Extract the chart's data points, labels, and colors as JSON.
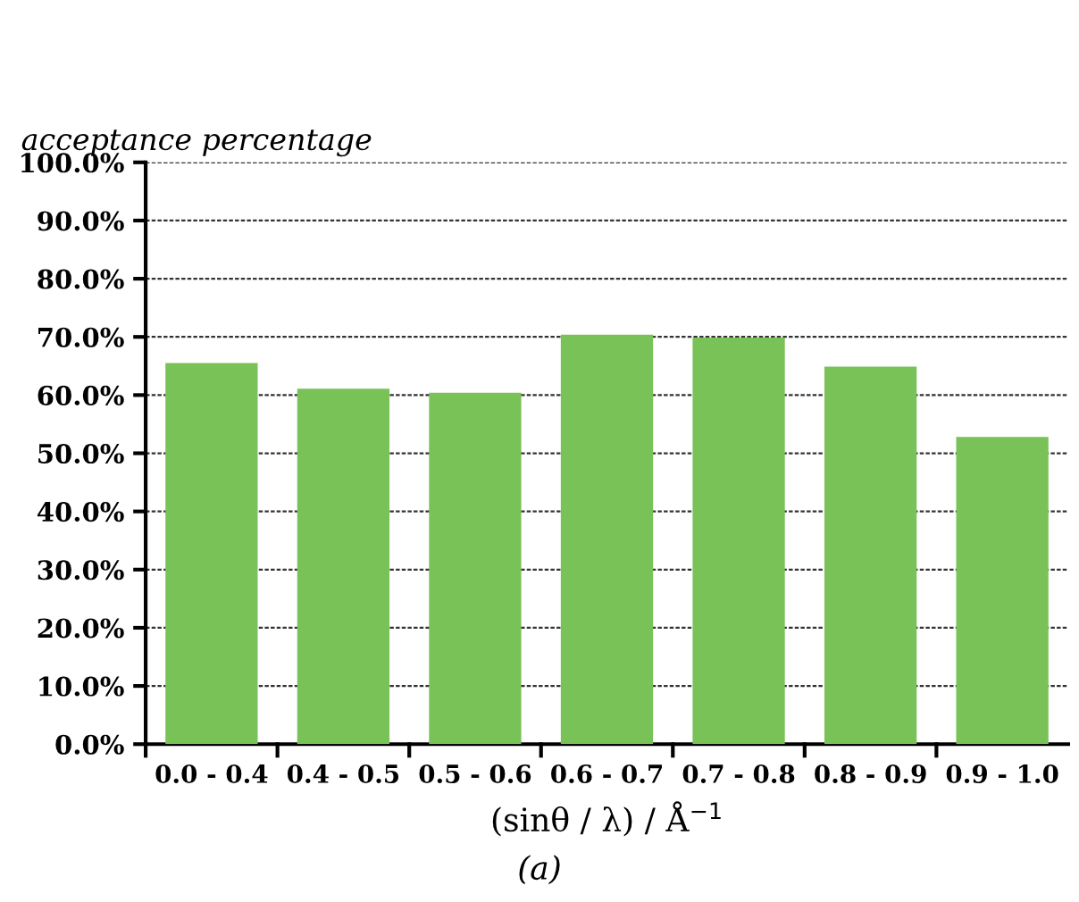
{
  "chart_data": {
    "type": "bar",
    "ylabel": "acceptance percentage",
    "xlabel": "(sinθ / λ) / Å$^{−1}$",
    "annotations": [
      "(a)"
    ],
    "categories": [
      "0.0 - 0.4",
      "0.4 - 0.5",
      "0.5 - 0.6",
      "0.6 - 0.7",
      "0.7 - 0.8",
      "0.8 - 0.9",
      "0.9 - 1.0"
    ],
    "values": [
      65.5,
      61.1,
      60.4,
      70.4,
      69.9,
      64.9,
      52.8
    ],
    "color": "#79c257",
    "ylim": [
      0,
      100
    ],
    "yticks": [
      {
        "value": 0,
        "label": "0.0%"
      },
      {
        "value": 10,
        "label": "10.0%"
      },
      {
        "value": 20,
        "label": "20.0%"
      },
      {
        "value": 30,
        "label": "30.0%"
      },
      {
        "value": 40,
        "label": "40.0%"
      },
      {
        "value": 50,
        "label": "50.0%"
      },
      {
        "value": 60,
        "label": "60.0%"
      },
      {
        "value": 70,
        "label": "70.0%"
      },
      {
        "value": 80,
        "label": "80.0%"
      },
      {
        "value": 90,
        "label": "90.0%"
      },
      {
        "value": 100,
        "label": "100.0%"
      }
    ],
    "grid": "y",
    "legend": false
  }
}
